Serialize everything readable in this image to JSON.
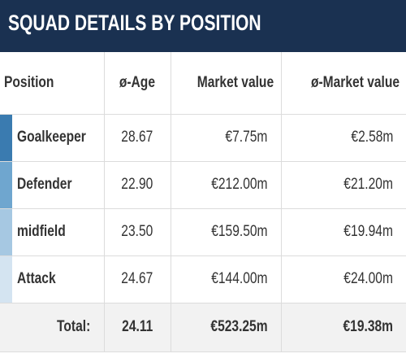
{
  "widget": {
    "title": "SQUAD DETAILS BY POSITION"
  },
  "colors": {
    "header_bg": "#1a3151",
    "goalkeeper_bar": "#3a7bb0",
    "defender_bar": "#6fa6cf",
    "midfield_bar": "#a6c8e2",
    "attack_bar": "#d4e4f1",
    "footer_bg": "#f2f2f2"
  },
  "table": {
    "headers": [
      "Position",
      "ø-Age",
      "Market value",
      "ø-Market value"
    ],
    "rows": [
      {
        "position": "Goalkeeper",
        "age": "28.67",
        "market_value": "€7.75m",
        "avg_market_value": "€2.58m"
      },
      {
        "position": "Defender",
        "age": "22.90",
        "market_value": "€212.00m",
        "avg_market_value": "€21.20m"
      },
      {
        "position": "midfield",
        "age": "23.50",
        "market_value": "€159.50m",
        "avg_market_value": "€19.94m"
      },
      {
        "position": "Attack",
        "age": "24.67",
        "market_value": "€144.00m",
        "avg_market_value": "€24.00m"
      }
    ],
    "total": {
      "label": "Total:",
      "age": "24.11",
      "market_value": "€523.25m",
      "avg_market_value": "€19.38m"
    }
  }
}
